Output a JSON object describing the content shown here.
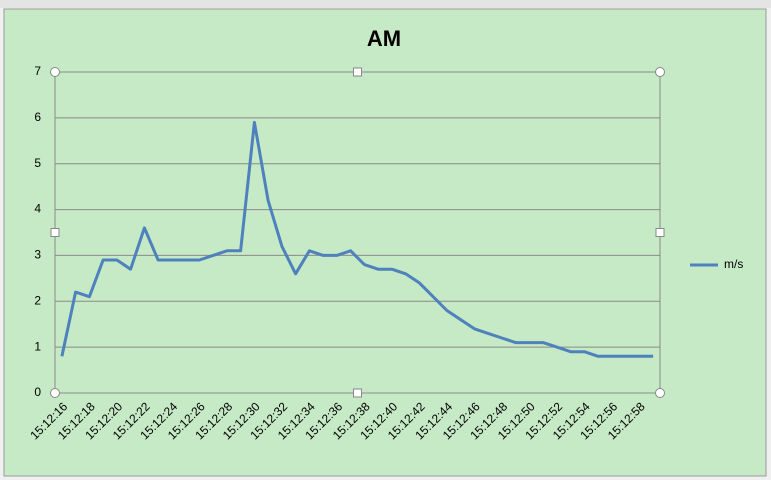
{
  "chart_data": {
    "type": "line",
    "title": "AM",
    "categories": [
      "15:12:16",
      null,
      "15:12:18",
      null,
      "15:12:20",
      null,
      "15:12:22",
      null,
      "15:12:24",
      null,
      "15:12:26",
      null,
      "15:12:28",
      null,
      "15:12:30",
      null,
      "15:12:32",
      null,
      "15:12:34",
      null,
      "15:12:36",
      null,
      "15:12:38",
      null,
      "15:12:40",
      null,
      "15:12:42",
      null,
      "15:12:44",
      null,
      "15:12:46",
      null,
      "15:12:48",
      null,
      "15:12:50",
      null,
      "15:12:52",
      null,
      "15:12:54",
      null,
      "15:12:56",
      null,
      "15:12:58",
      null
    ],
    "series": [
      {
        "name": "m/s",
        "color": "#4f81bd",
        "values": [
          0.8,
          2.2,
          2.1,
          2.9,
          2.9,
          2.7,
          3.6,
          2.9,
          2.9,
          2.9,
          2.9,
          3.0,
          3.1,
          3.1,
          5.9,
          4.2,
          3.2,
          2.6,
          3.1,
          3.0,
          3.0,
          3.1,
          2.8,
          2.7,
          2.7,
          2.6,
          2.4,
          2.1,
          1.8,
          1.6,
          1.4,
          1.3,
          1.2,
          1.1,
          1.1,
          1.1,
          1.0,
          0.9,
          0.9,
          0.8,
          0.8,
          0.8,
          0.8,
          0.8
        ]
      }
    ],
    "ylim": [
      0,
      7
    ],
    "yticks": [
      0,
      1,
      2,
      3,
      4,
      5,
      6,
      7
    ],
    "grid": true,
    "legend": "right"
  }
}
